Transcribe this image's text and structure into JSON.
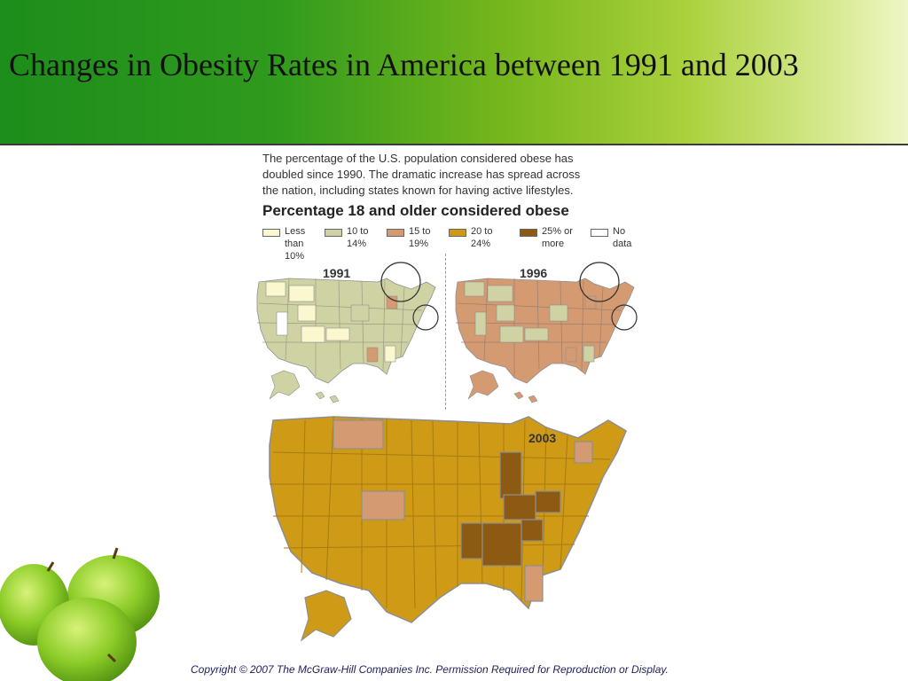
{
  "slide": {
    "title": "Changes in Obesity Rates in America between 1991 and 2003",
    "copyright": "Copyright © 2007 The McGraw-Hill Companies Inc. Permission Required for Reproduction or Display."
  },
  "figure": {
    "intro_lines": [
      "The percentage of the U.S. population considered obese has",
      "doubled since 1990. The dramatic increase has spread across",
      "the nation, including states known for having active lifestyles."
    ],
    "heading": "Percentage 18 and older considered obese",
    "legend": [
      {
        "lines": [
          "Less",
          "than",
          "10%"
        ],
        "color": "#fbf8cf"
      },
      {
        "lines": [
          "10 to",
          "14%"
        ],
        "color": "#cfd3a3"
      },
      {
        "lines": [
          "15 to",
          "19%"
        ],
        "color": "#d49a72"
      },
      {
        "lines": [
          "20 to",
          "24%"
        ],
        "color": "#cf9a16"
      },
      {
        "lines": [
          "25% or",
          "more"
        ],
        "color": "#8c5a12"
      },
      {
        "lines": [
          "No",
          "data"
        ],
        "color": "#ffffff"
      }
    ],
    "maps": [
      {
        "year": "1991",
        "base_color": "#cfd3a3",
        "region_colors": [
          "#fbf8cf",
          "#fbf8cf",
          "#fbf8cf",
          "#fbf8cf",
          "#fbf8cf",
          "#d49a72",
          "#d49a72",
          "#ffffff",
          "#cfd3a3",
          "#fbf8cf"
        ]
      },
      {
        "year": "1996",
        "base_color": "#d49a72",
        "region_colors": [
          "#cfd3a3",
          "#cfd3a3",
          "#cfd3a3",
          "#cfd3a3",
          "#cfd3a3",
          "#d49a72",
          "#d49a72",
          "#cfd3a3",
          "#cfd3a3",
          "#cfd3a3"
        ]
      },
      {
        "year": "2003",
        "base_color": "#cf9a16",
        "region_colors": [
          "#d49a72",
          "#d49a72",
          "#8c5a12",
          "#8c5a12",
          "#8c5a12",
          "#8c5a12",
          "#8c5a12",
          "#8c5a12",
          "#d49a72",
          "#d49a72"
        ]
      }
    ]
  }
}
